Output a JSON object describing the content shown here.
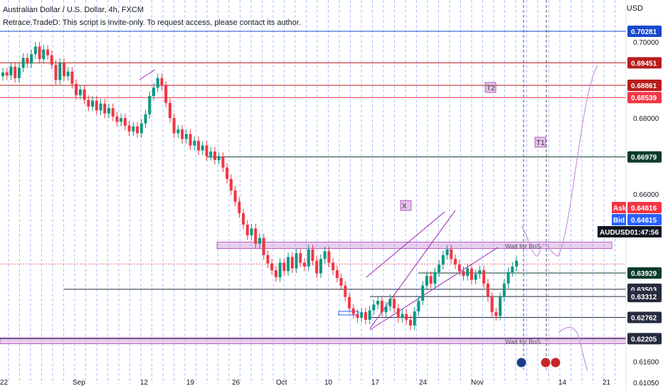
{
  "header": {
    "title": "Australian Dollar / U.S. Dollar, 4h, FXCM",
    "indicator_note": "Retrace.TradeD: This script is invite-only. To request access, please contact its author.",
    "currency": "USD"
  },
  "chart_data": {
    "type": "candlestick",
    "symbol": "AUDUSD",
    "y_ticks": [
      "0.70000",
      "0.68000",
      "0.66000",
      "0.61600",
      "0.61050"
    ],
    "x_ticks": [
      "22",
      "Sep",
      "12",
      "19",
      "26",
      "Oct",
      "10",
      "17",
      "24",
      "Nov",
      "14",
      "21"
    ],
    "price_lines": [
      {
        "price": "0.70281",
        "color": "#1848cc"
      },
      {
        "price": "0.69451",
        "color": "#b71c1c"
      },
      {
        "price": "0.68861",
        "color": "#b71c1c"
      },
      {
        "price": "0.68539",
        "color": "#f23645"
      },
      {
        "price": "0.66979",
        "color": "#0b3b2e"
      },
      {
        "price": "0.63929",
        "color": "#0b3b2e"
      },
      {
        "price": "0.63503",
        "color": "#262b3e"
      },
      {
        "price": "0.63312",
        "color": "#262b3e"
      },
      {
        "price": "0.62762",
        "color": "#262b3e"
      },
      {
        "price": "0.62205",
        "color": "#262b3e"
      }
    ],
    "ask": {
      "label": "Ask",
      "price": "0.64616",
      "color": "#f23645"
    },
    "bid": {
      "label": "Bid",
      "price": "0.64615",
      "color": "#2962ff"
    },
    "last": {
      "label": "AUDUSD",
      "countdown": "01:47:56",
      "color": "#131722"
    },
    "zones": [
      {
        "label": "Wait for BoS",
        "price_top": 0.6474,
        "price_bottom": 0.6457
      },
      {
        "label": "Wait for BoS",
        "price_top": 0.6223,
        "price_bottom": 0.6207
      }
    ],
    "markers": [
      "T2",
      "T1",
      "X"
    ],
    "up_color": "#089981",
    "down_color": "#f23645",
    "series": [
      {
        "name": "close",
        "values": [
          0.692,
          0.6912,
          0.6935,
          0.6905,
          0.6932,
          0.6958,
          0.6943,
          0.6968,
          0.6988,
          0.6955,
          0.698,
          0.6965,
          0.694,
          0.69,
          0.6945,
          0.691,
          0.6922,
          0.689,
          0.686,
          0.6875,
          0.6848,
          0.683,
          0.6846,
          0.682,
          0.6838,
          0.6812,
          0.6826,
          0.6804,
          0.679,
          0.68,
          0.678,
          0.6765,
          0.6778,
          0.676,
          0.6786,
          0.681,
          0.6858,
          0.688,
          0.6905,
          0.6885,
          0.684,
          0.68,
          0.676,
          0.677,
          0.6745,
          0.6758,
          0.6728,
          0.674,
          0.6715,
          0.6728,
          0.67,
          0.6712,
          0.669,
          0.6698,
          0.667,
          0.664,
          0.661,
          0.658,
          0.655,
          0.652,
          0.6492,
          0.651,
          0.647,
          0.6485,
          0.644,
          0.6418,
          0.64,
          0.6382,
          0.642,
          0.6398,
          0.6435,
          0.6405,
          0.6445,
          0.642,
          0.641,
          0.6455,
          0.6425,
          0.6392,
          0.643,
          0.645,
          0.642,
          0.64,
          0.638,
          0.636,
          0.633,
          0.63,
          0.6285,
          0.6275,
          0.629,
          0.627,
          0.6295,
          0.631,
          0.632,
          0.629,
          0.6305,
          0.6325,
          0.63,
          0.6275,
          0.6285,
          0.627,
          0.6255,
          0.6292,
          0.632,
          0.636,
          0.6385,
          0.6365,
          0.6395,
          0.6415,
          0.644,
          0.6455,
          0.643,
          0.6415,
          0.6398,
          0.6385,
          0.6405,
          0.6375,
          0.639,
          0.64,
          0.6365,
          0.633,
          0.629,
          0.628,
          0.633,
          0.6365,
          0.6395,
          0.641,
          0.6425
        ]
      },
      {
        "name": "projection"
      }
    ]
  }
}
